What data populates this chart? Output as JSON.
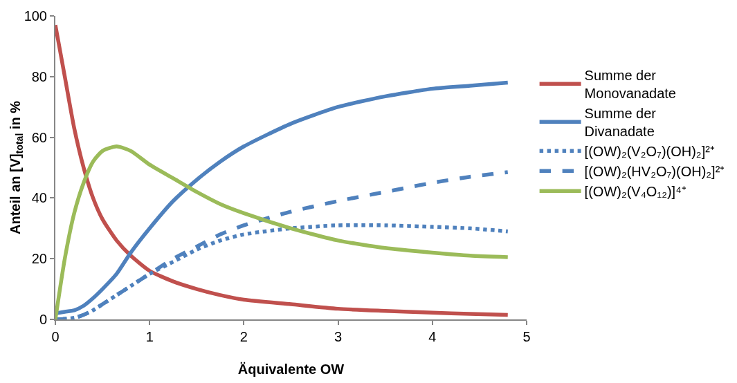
{
  "chart_data": {
    "type": "line",
    "xlabel": "Äquivalente OW",
    "ylabel": "Anteil an [V]$_{total}$ in %",
    "x": [
      0,
      0.1,
      0.2,
      0.3,
      0.4,
      0.5,
      0.65,
      0.8,
      1,
      1.25,
      1.5,
      1.75,
      2,
      2.5,
      3,
      3.5,
      4,
      4.4,
      4.8
    ],
    "series": [
      {
        "name": "Summe der Monovanadate",
        "color": "#c0504d",
        "line_style": "solid",
        "values": [
          97,
          80,
          63,
          50,
          40,
          33,
          26,
          21,
          16,
          12.5,
          10,
          8,
          6.5,
          5,
          3.5,
          2.8,
          2.2,
          1.8,
          1.5
        ]
      },
      {
        "name": "Summe der Divanadate",
        "color": "#4f81bd",
        "line_style": "solid",
        "values": [
          2,
          2.5,
          3,
          4.5,
          7,
          10,
          15,
          22,
          30,
          39,
          46,
          52,
          57,
          64.5,
          70,
          73.5,
          76,
          77,
          78
        ]
      },
      {
        "name": "[(OW)₂(V₂O₇)(OH)₂]²⁺",
        "color": "#4f81bd",
        "line_style": "dotted",
        "values": [
          0,
          0.2,
          0.5,
          1.5,
          3,
          5,
          8,
          11,
          15,
          19,
          23,
          26,
          28,
          30,
          31,
          31,
          30.5,
          30,
          29
        ]
      },
      {
        "name": "[(OW)₂(HV₂O₇)(OH)₂]²⁺",
        "color": "#4f81bd",
        "line_style": "dashed",
        "values": [
          0,
          0.2,
          0.5,
          1.5,
          3,
          5,
          8,
          11,
          15,
          20,
          24,
          28,
          31,
          35.5,
          39,
          42,
          45,
          47,
          48.5
        ]
      },
      {
        "name": "[(OW)₂(V₄O₁₂)]⁴⁺",
        "color": "#9bbb59",
        "line_style": "solid",
        "values": [
          0,
          20,
          35,
          45,
          52,
          55.5,
          57,
          55.5,
          51,
          46.5,
          42,
          38,
          35,
          30,
          26,
          23.5,
          22,
          21,
          20.5
        ]
      }
    ],
    "xlim": [
      0,
      5
    ],
    "xticks": [
      0,
      1,
      2,
      3,
      4,
      5
    ],
    "ylim": [
      0,
      100
    ],
    "yticks": [
      0,
      20,
      40,
      60,
      80,
      100
    ],
    "grid": false,
    "legend": "right",
    "marker": "none"
  }
}
